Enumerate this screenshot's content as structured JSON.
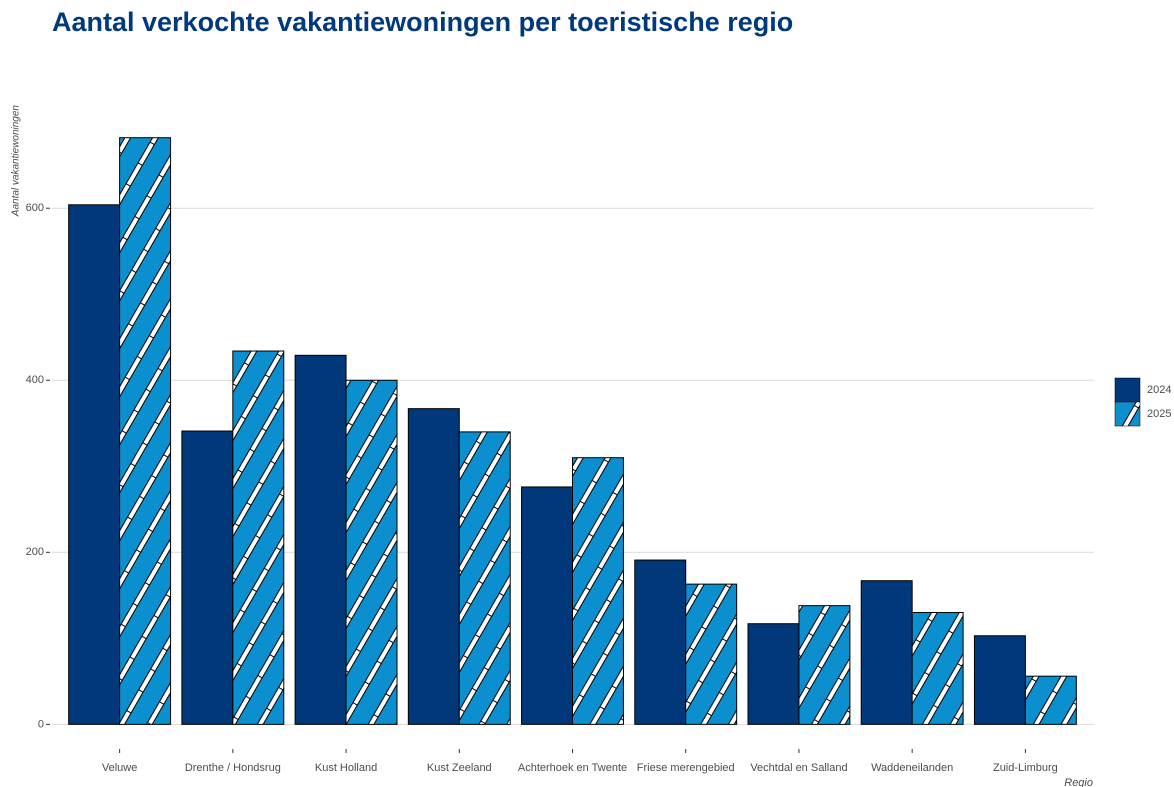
{
  "chart_data": {
    "type": "bar",
    "title": "Aantal verkochte vakantiewoningen per toeristische regio",
    "y_label": "Aantal vakantiewoningen",
    "x_label": "Regio",
    "categories": [
      "Veluwe",
      "Drenthe / Hondsrug",
      "Kust Holland",
      "Kust Zeeland",
      "Achterhoek en Twente",
      "Friese merengebied",
      "Vechtdal en Salland",
      "Waddeneilanden",
      "Zuid-Limburg"
    ],
    "series": [
      {
        "name": "2024",
        "color": "#00387a",
        "values": [
          604,
          341,
          429,
          367,
          276,
          191,
          117,
          167,
          103
        ]
      },
      {
        "name": "2025",
        "color": "#0b8fcf",
        "hatch": true,
        "values": [
          682,
          434,
          400,
          340,
          310,
          163,
          138,
          130,
          56
        ]
      }
    ],
    "ylim": [
      -24,
      720
    ],
    "yticks": [
      0,
      200,
      400,
      600
    ],
    "grid": true,
    "legend": "right"
  }
}
